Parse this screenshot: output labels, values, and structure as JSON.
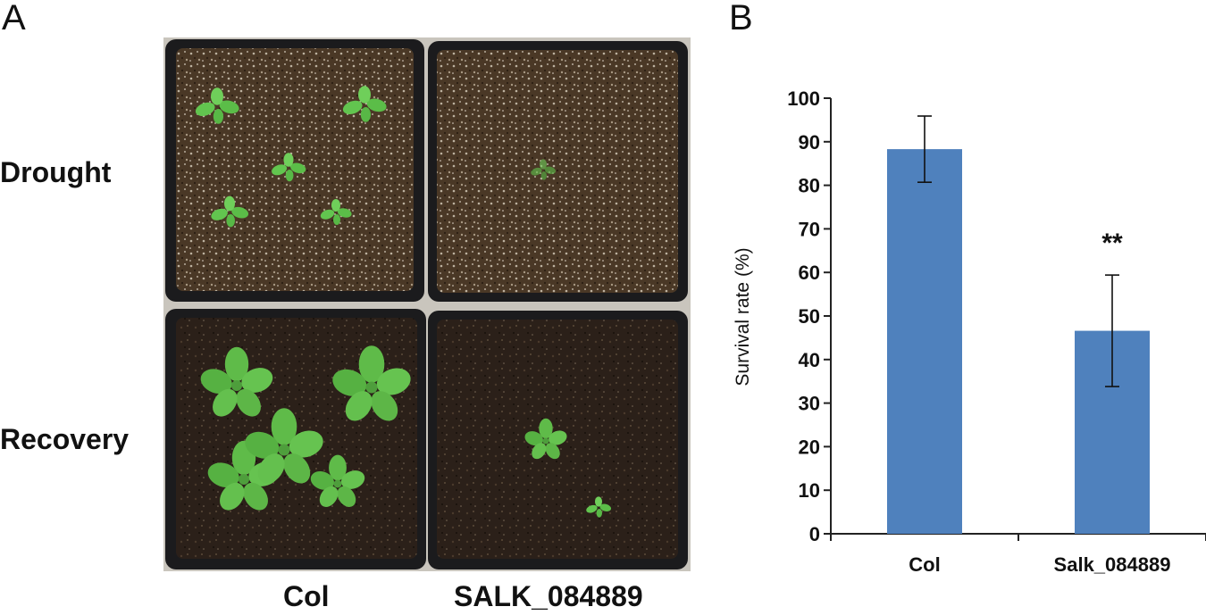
{
  "panel_a": {
    "letter": "A",
    "row_labels": [
      "Drought",
      "Recovery"
    ],
    "col_labels": [
      "Col",
      "SALK_084889"
    ]
  },
  "panel_b": {
    "letter": "B"
  },
  "colors": {
    "bar": "#4f81bd",
    "soil": "#3a2a1e",
    "tray": "#1b1b1d",
    "plant": "#5fb84a"
  },
  "chart_data": {
    "type": "bar",
    "categories": [
      "Col",
      "Salk_084889"
    ],
    "values": [
      88.3,
      46.6
    ],
    "errors": [
      7.6,
      12.8
    ],
    "annotations": [
      {
        "category": "Salk_084889",
        "text": "**"
      }
    ],
    "title": "",
    "xlabel": "",
    "ylabel": "Survival rate (%)",
    "ylim": [
      0,
      100
    ],
    "yticks": [
      0,
      10,
      20,
      30,
      40,
      50,
      60,
      70,
      80,
      90,
      100
    ],
    "grid": false,
    "legend": "none"
  }
}
